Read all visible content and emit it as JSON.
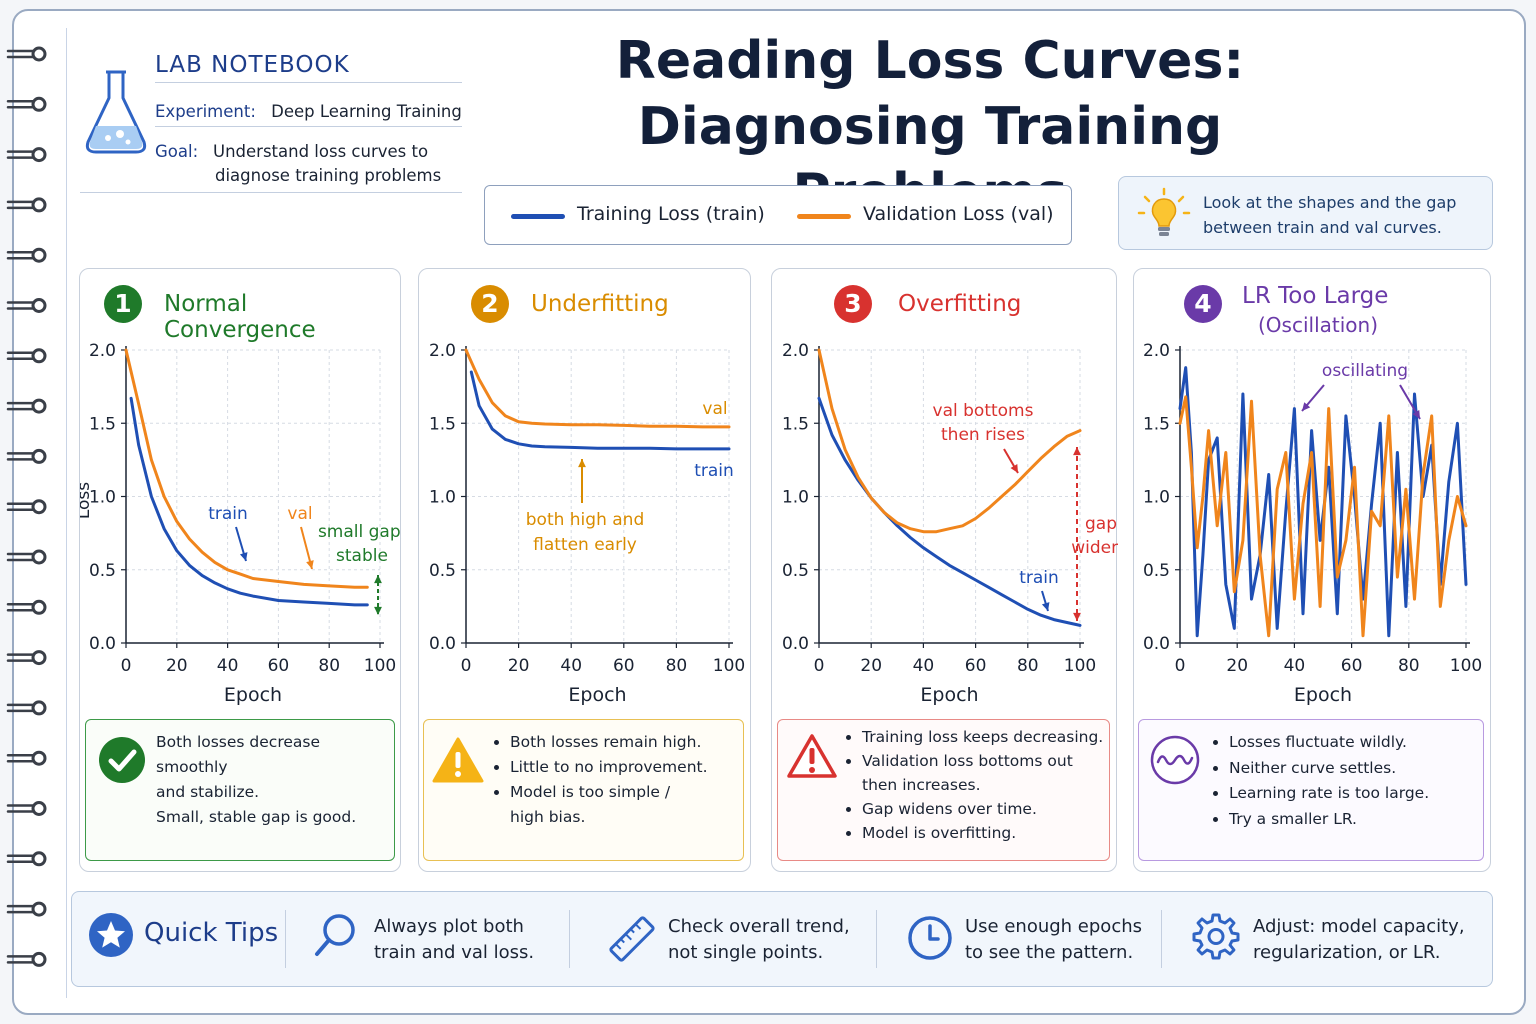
{
  "notebook": {
    "label": "LAB NOTEBOOK",
    "experiment_key": "Experiment:",
    "experiment_value": "Deep Learning Training",
    "goal_key": "Goal:",
    "goal_line1": "Understand loss curves to",
    "goal_line2": "diagnose training problems"
  },
  "title": {
    "line1": "Reading Loss Curves:",
    "line2": "Diagnosing Training Problems"
  },
  "legend": {
    "train_label": "Training Loss (train)",
    "val_label": "Validation Loss (val)",
    "train_color": "#1f4fb4",
    "val_color": "#f0851c"
  },
  "hint": {
    "line1": "Look at the shapes and the gap",
    "line2": "between train and val curves."
  },
  "panels": [
    {
      "number": "1",
      "title": "Normal Convergence",
      "color": "#1f7a2a",
      "note_lines": [
        "Both losses decrease smoothly",
        "and stabilize.",
        "Small, stable gap is good."
      ]
    },
    {
      "number": "2",
      "title": "Underfitting",
      "color": "#d98c00",
      "note_bullets": [
        "Both losses remain high.",
        "Little to no improvement.",
        "Model is too simple /",
        "high bias."
      ]
    },
    {
      "number": "3",
      "title": "Overfitting",
      "color": "#d8322f",
      "note_bullets": [
        "Training loss keeps decreasing.",
        "Validation loss bottoms out",
        "then increases.",
        "Gap widens over time.",
        "Model is overfitting."
      ]
    },
    {
      "number": "4",
      "title": "LR Too Large",
      "title_line2": "(Oscillation)",
      "color": "#6a3aa8",
      "note_bullets": [
        "Losses fluctuate wildly.",
        "Neither curve settles.",
        "Learning rate is too large.",
        "Try a smaller LR."
      ]
    }
  ],
  "chart_data": [
    {
      "type": "line",
      "title": "Normal Convergence",
      "xlabel": "Epoch",
      "ylabel": "Loss",
      "xlim": [
        0,
        100
      ],
      "ylim": [
        0,
        2.0
      ],
      "xticks": [
        "0",
        "20",
        "40",
        "60",
        "80",
        "100"
      ],
      "yticks": [
        "0.0",
        "0.5",
        "1.0",
        "1.5",
        "2.0"
      ],
      "grid": true,
      "series": [
        {
          "name": "train",
          "x": [
            2,
            5,
            10,
            15,
            20,
            25,
            30,
            35,
            40,
            45,
            50,
            60,
            70,
            80,
            90,
            95
          ],
          "y": [
            1.67,
            1.35,
            1.0,
            0.78,
            0.63,
            0.53,
            0.46,
            0.41,
            0.37,
            0.34,
            0.32,
            0.29,
            0.28,
            0.27,
            0.26,
            0.26
          ]
        },
        {
          "name": "val",
          "x": [
            0,
            5,
            10,
            15,
            20,
            25,
            30,
            35,
            40,
            45,
            50,
            60,
            70,
            80,
            90,
            95
          ],
          "y": [
            2.0,
            1.63,
            1.25,
            1.0,
            0.83,
            0.71,
            0.62,
            0.55,
            0.5,
            0.47,
            0.44,
            0.42,
            0.4,
            0.39,
            0.38,
            0.38
          ]
        }
      ],
      "annotations": [
        "train",
        "val",
        "small gap,",
        "stable"
      ]
    },
    {
      "type": "line",
      "title": "Underfitting",
      "xlabel": "Epoch",
      "xlim": [
        0,
        100
      ],
      "ylim": [
        0,
        2.0
      ],
      "xticks": [
        "0",
        "20",
        "40",
        "60",
        "80",
        "100"
      ],
      "yticks": [
        "0.0",
        "0.5",
        "1.0",
        "1.5",
        "2.0"
      ],
      "grid": true,
      "series": [
        {
          "name": "train",
          "x": [
            2,
            5,
            10,
            15,
            20,
            25,
            30,
            40,
            50,
            60,
            70,
            80,
            90,
            100
          ],
          "y": [
            1.85,
            1.62,
            1.46,
            1.39,
            1.36,
            1.345,
            1.34,
            1.335,
            1.33,
            1.33,
            1.33,
            1.325,
            1.325,
            1.325
          ]
        },
        {
          "name": "val",
          "x": [
            0,
            5,
            10,
            15,
            20,
            25,
            30,
            40,
            50,
            60,
            70,
            80,
            90,
            100
          ],
          "y": [
            2.0,
            1.8,
            1.64,
            1.55,
            1.51,
            1.5,
            1.495,
            1.49,
            1.49,
            1.485,
            1.48,
            1.48,
            1.475,
            1.475
          ]
        }
      ],
      "annotations": [
        "val",
        "train",
        "both high and",
        "flatten early"
      ]
    },
    {
      "type": "line",
      "title": "Overfitting",
      "xlabel": "Epoch",
      "xlim": [
        0,
        100
      ],
      "ylim": [
        0,
        2.0
      ],
      "xticks": [
        "0",
        "20",
        "40",
        "60",
        "80",
        "100"
      ],
      "yticks": [
        "0.0",
        "0.5",
        "1.0",
        "1.5",
        "2.0"
      ],
      "grid": true,
      "series": [
        {
          "name": "train",
          "x": [
            0,
            5,
            10,
            15,
            20,
            25,
            30,
            35,
            40,
            45,
            50,
            55,
            60,
            65,
            70,
            75,
            80,
            85,
            90,
            95,
            100
          ],
          "y": [
            1.67,
            1.42,
            1.25,
            1.11,
            0.99,
            0.89,
            0.8,
            0.72,
            0.65,
            0.59,
            0.53,
            0.48,
            0.43,
            0.38,
            0.33,
            0.28,
            0.23,
            0.19,
            0.16,
            0.14,
            0.12
          ]
        },
        {
          "name": "val",
          "x": [
            0,
            5,
            10,
            15,
            20,
            25,
            30,
            35,
            40,
            45,
            50,
            55,
            60,
            65,
            70,
            75,
            80,
            85,
            90,
            95,
            100
          ],
          "y": [
            2.0,
            1.6,
            1.32,
            1.13,
            0.99,
            0.89,
            0.82,
            0.78,
            0.76,
            0.76,
            0.78,
            0.8,
            0.85,
            0.92,
            1.0,
            1.08,
            1.17,
            1.26,
            1.34,
            1.41,
            1.45
          ]
        }
      ],
      "annotations": [
        "val bottoms",
        "then rises",
        "gap",
        "widens",
        "train"
      ]
    },
    {
      "type": "line",
      "title": "LR Too Large (Oscillation)",
      "xlabel": "Epoch",
      "xlim": [
        0,
        100
      ],
      "ylim": [
        0,
        2.0
      ],
      "xticks": [
        "0",
        "20",
        "40",
        "60",
        "80",
        "100"
      ],
      "yticks": [
        "0.0",
        "0.5",
        "1.0",
        "1.5",
        "2.0"
      ],
      "grid": true,
      "series": [
        {
          "name": "train",
          "x": [
            0,
            2,
            4,
            6,
            8,
            10,
            13,
            16,
            19,
            22,
            25,
            28,
            31,
            34,
            37,
            40,
            43,
            46,
            49,
            52,
            55,
            58,
            61,
            64,
            67,
            70,
            73,
            76,
            79,
            82,
            85,
            88,
            91,
            94,
            97,
            100
          ],
          "y": [
            1.6,
            1.88,
            1.3,
            0.05,
            0.6,
            1.25,
            1.4,
            0.4,
            0.1,
            1.7,
            0.3,
            0.6,
            1.15,
            0.1,
            0.9,
            1.6,
            0.2,
            1.45,
            0.7,
            1.2,
            0.2,
            1.55,
            1.0,
            0.3,
            0.95,
            1.5,
            0.05,
            1.3,
            0.25,
            1.7,
            1.0,
            1.35,
            0.4,
            1.1,
            1.5,
            0.4
          ]
        },
        {
          "name": "val",
          "x": [
            0,
            2,
            4,
            6,
            8,
            10,
            13,
            16,
            19,
            22,
            25,
            28,
            31,
            34,
            37,
            40,
            43,
            46,
            49,
            52,
            55,
            58,
            61,
            64,
            67,
            70,
            73,
            76,
            79,
            82,
            85,
            88,
            91,
            94,
            97,
            100
          ],
          "y": [
            1.5,
            1.68,
            1.2,
            0.65,
            1.0,
            1.45,
            0.8,
            1.3,
            0.35,
            0.7,
            1.65,
            0.6,
            0.05,
            1.05,
            1.3,
            0.3,
            0.95,
            1.3,
            0.25,
            1.6,
            0.45,
            0.7,
            1.2,
            0.05,
            0.9,
            0.8,
            1.55,
            0.45,
            1.05,
            0.3,
            1.15,
            1.55,
            0.25,
            0.7,
            1.0,
            0.8
          ]
        }
      ],
      "annotations": [
        "oscillating"
      ]
    }
  ],
  "tips": {
    "title": "Quick Tips",
    "items": [
      {
        "icon": "magnifier-icon",
        "line1": "Always plot both",
        "line2": "train and val loss."
      },
      {
        "icon": "ruler-icon",
        "line1": "Check overall trend,",
        "line2": "not single points."
      },
      {
        "icon": "clock-icon",
        "line1": "Use enough epochs",
        "line2": "to see the pattern."
      },
      {
        "icon": "gear-icon",
        "line1": "Adjust: model capacity,",
        "line2": "regularization, or LR."
      }
    ]
  }
}
